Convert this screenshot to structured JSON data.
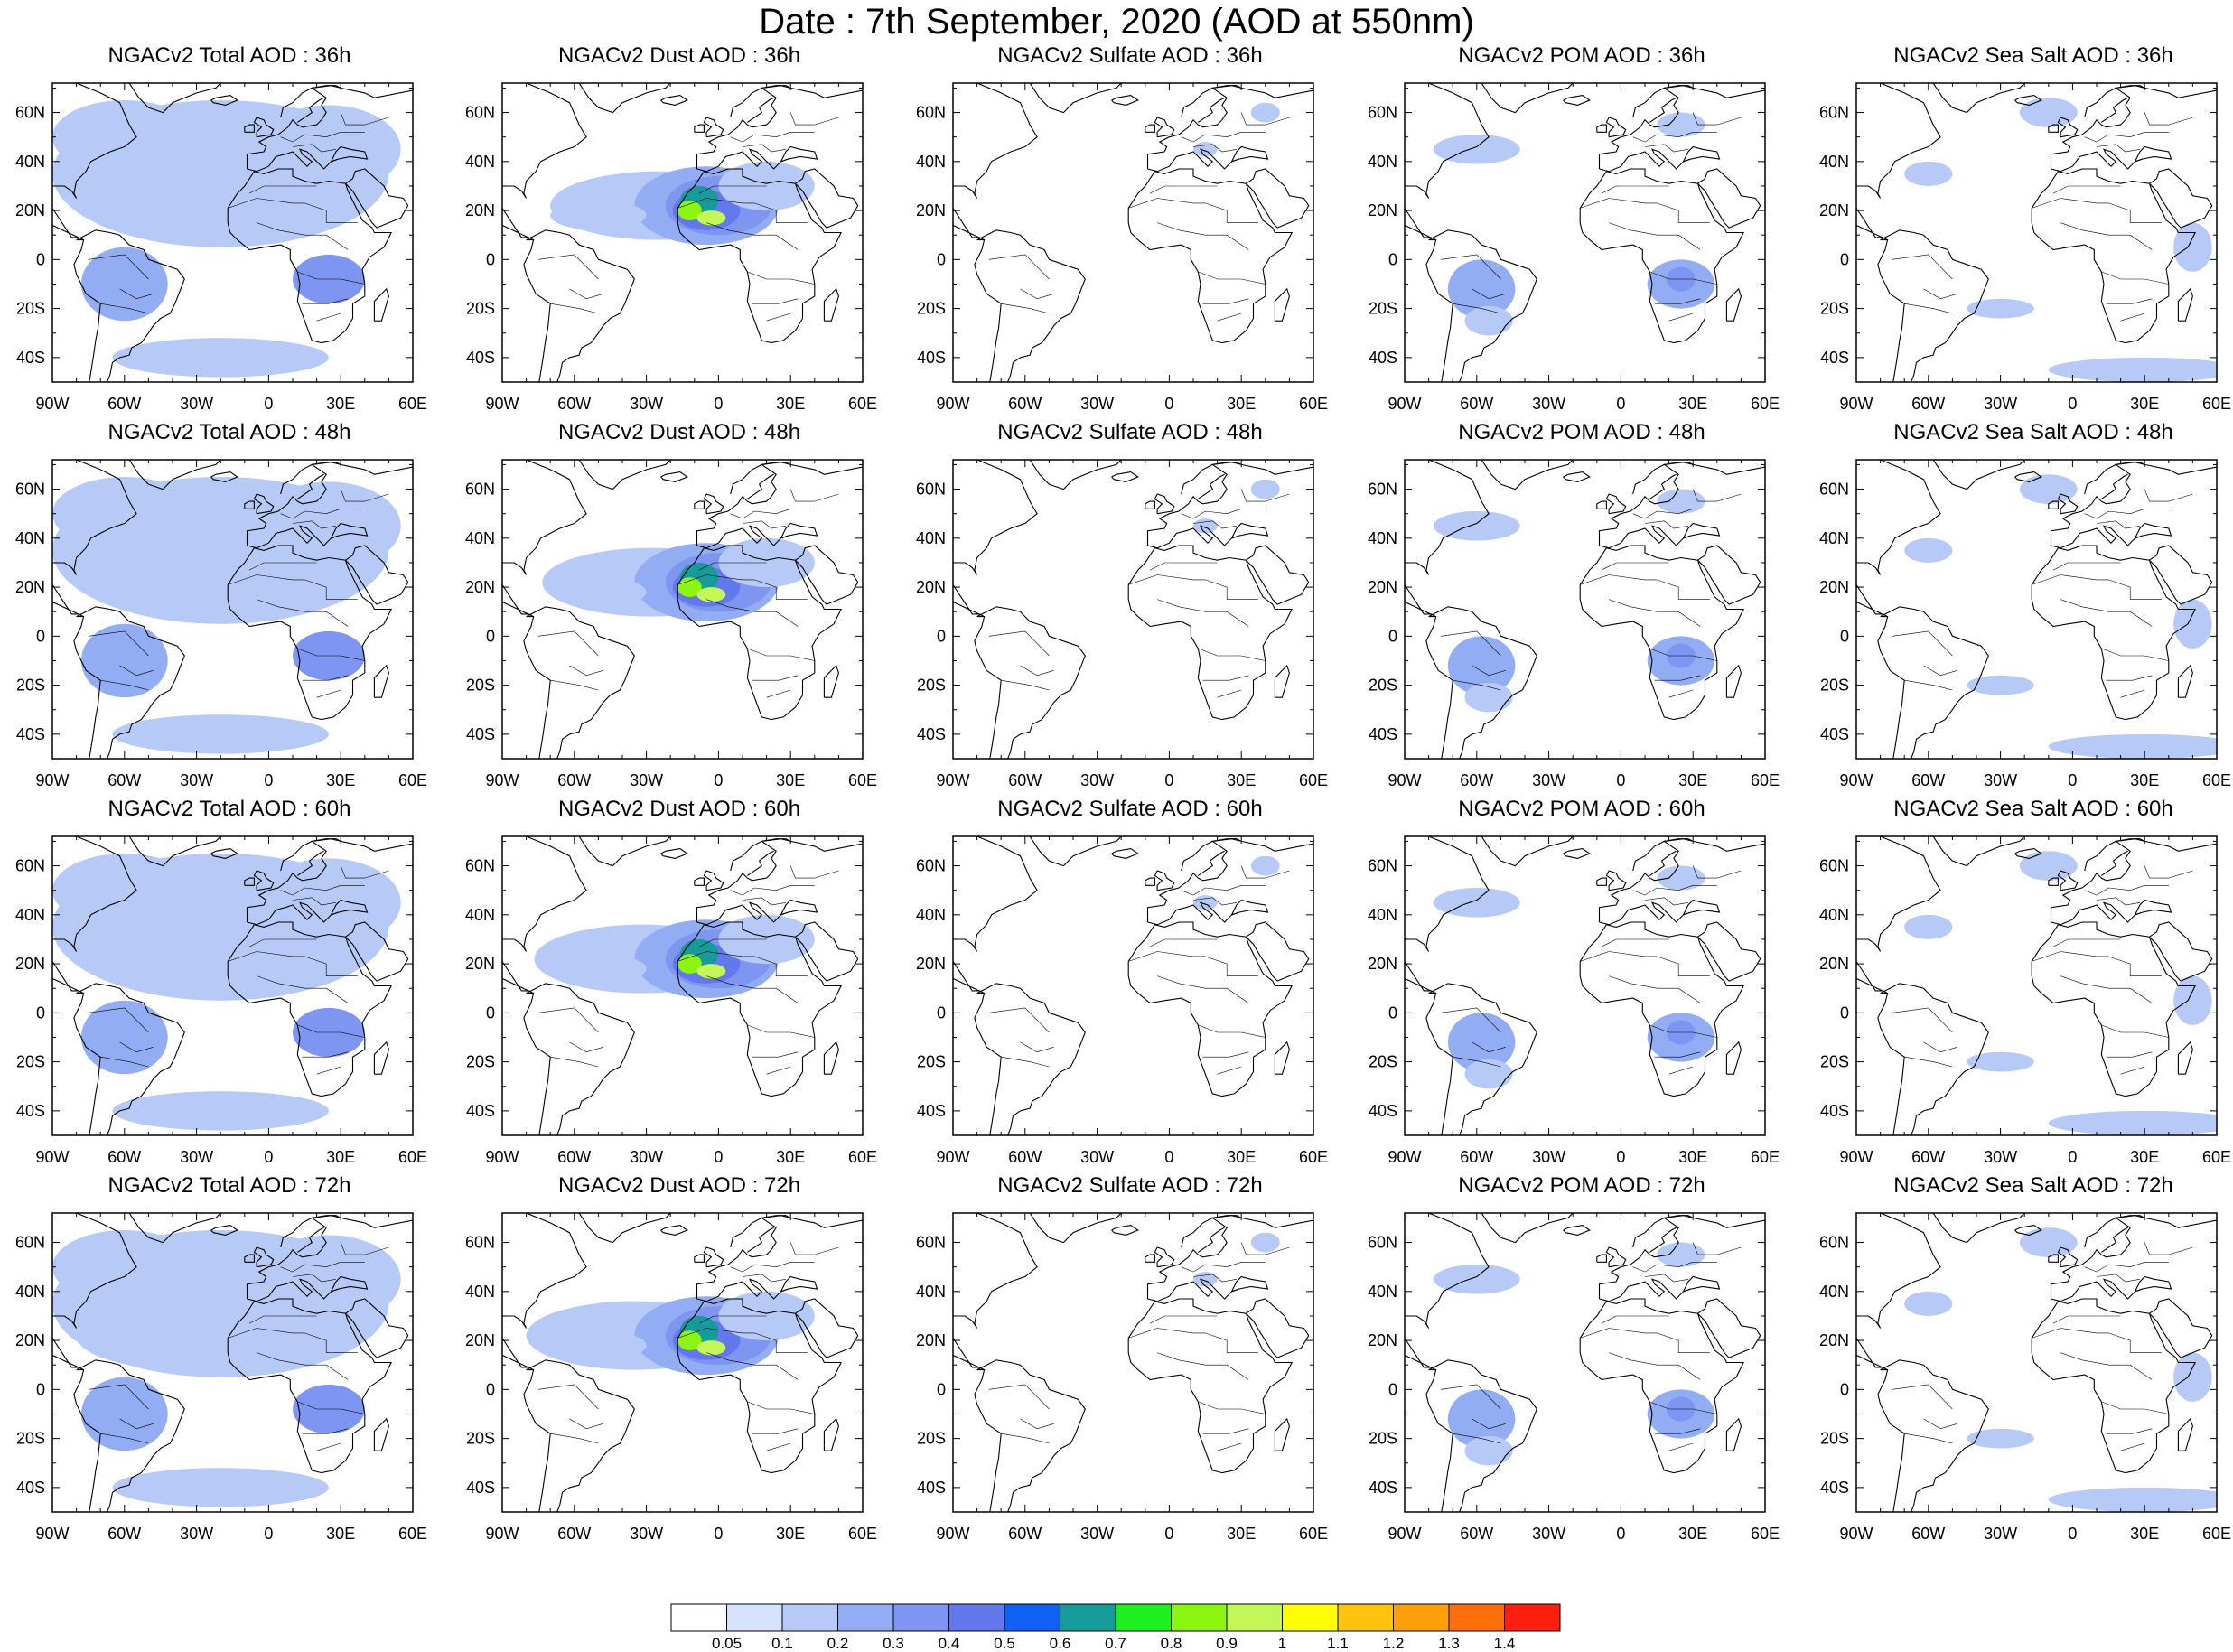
{
  "title": "Date : 7th September, 2020 (AOD at 550nm)",
  "map": {
    "lon_range": [
      -90,
      60
    ],
    "lat_range": [
      -50,
      72
    ],
    "lon_ticks": [
      {
        "lon": -90,
        "label": "90W"
      },
      {
        "lon": -60,
        "label": "60W"
      },
      {
        "lon": -30,
        "label": "30W"
      },
      {
        "lon": 0,
        "label": "0"
      },
      {
        "lon": 30,
        "label": "30E"
      },
      {
        "lon": 60,
        "label": "60E"
      }
    ],
    "lat_ticks": [
      {
        "lat": 60,
        "label": "60N"
      },
      {
        "lat": 40,
        "label": "40N"
      },
      {
        "lat": 20,
        "label": "20N"
      },
      {
        "lat": 0,
        "label": "0"
      },
      {
        "lat": -20,
        "label": "20S"
      },
      {
        "lat": -40,
        "label": "40S"
      }
    ]
  },
  "panels": [
    {
      "title": "NGACv2 Total AOD : 36h",
      "species": "total",
      "hour": 36
    },
    {
      "title": "NGACv2 Dust AOD : 36h",
      "species": "dust",
      "hour": 36
    },
    {
      "title": "NGACv2 Sulfate AOD : 36h",
      "species": "sulfate",
      "hour": 36
    },
    {
      "title": "NGACv2 POM AOD : 36h",
      "species": "pom",
      "hour": 36
    },
    {
      "title": "NGACv2 Sea Salt AOD : 36h",
      "species": "seasalt",
      "hour": 36
    },
    {
      "title": "NGACv2 Total AOD : 48h",
      "species": "total",
      "hour": 48
    },
    {
      "title": "NGACv2 Dust AOD : 48h",
      "species": "dust",
      "hour": 48
    },
    {
      "title": "NGACv2 Sulfate AOD : 48h",
      "species": "sulfate",
      "hour": 48
    },
    {
      "title": "NGACv2 POM AOD : 48h",
      "species": "pom",
      "hour": 48
    },
    {
      "title": "NGACv2 Sea Salt AOD : 48h",
      "species": "seasalt",
      "hour": 48
    },
    {
      "title": "NGACv2 Total AOD : 60h",
      "species": "total",
      "hour": 60
    },
    {
      "title": "NGACv2 Dust AOD : 60h",
      "species": "dust",
      "hour": 60
    },
    {
      "title": "NGACv2 Sulfate AOD : 60h",
      "species": "sulfate",
      "hour": 60
    },
    {
      "title": "NGACv2 POM AOD : 60h",
      "species": "pom",
      "hour": 60
    },
    {
      "title": "NGACv2 Sea Salt AOD : 60h",
      "species": "seasalt",
      "hour": 60
    },
    {
      "title": "NGACv2 Total AOD : 72h",
      "species": "total",
      "hour": 72
    },
    {
      "title": "NGACv2 Dust AOD : 72h",
      "species": "dust",
      "hour": 72
    },
    {
      "title": "NGACv2 Sulfate AOD : 72h",
      "species": "sulfate",
      "hour": 72
    },
    {
      "title": "NGACv2 POM AOD : 72h",
      "species": "pom",
      "hour": 72
    },
    {
      "title": "NGACv2 Sea Salt  AOD : 72h",
      "species": "seasalt",
      "hour": 72
    }
  ],
  "colorbar": {
    "labels": [
      "0.05",
      "0.1",
      "0.2",
      "0.3",
      "0.4",
      "0.5",
      "0.6",
      "0.7",
      "0.8",
      "0.9",
      "1",
      "1.1",
      "1.2",
      "1.3",
      "1.4"
    ],
    "colors": [
      "#ffffff",
      "#d6e1fb",
      "#b7c9f7",
      "#93adf4",
      "#7f95f2",
      "#6478ee",
      "#1060f5",
      "#179a9a",
      "#1fef1f",
      "#8cf50f",
      "#c2f757",
      "#ffff00",
      "#ffc30d",
      "#ff9f0a",
      "#ff700b",
      "#ff1f0e"
    ]
  }
}
